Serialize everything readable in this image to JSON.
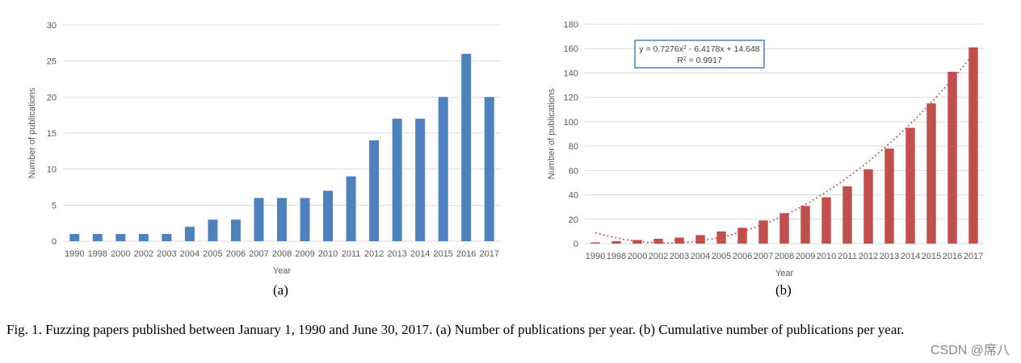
{
  "chart_data": [
    {
      "id": "a",
      "type": "bar",
      "categories": [
        "1990",
        "1998",
        "2000",
        "2002",
        "2003",
        "2004",
        "2005",
        "2006",
        "2007",
        "2008",
        "2009",
        "2010",
        "2011",
        "2012",
        "2013",
        "2014",
        "2015",
        "2016",
        "2017"
      ],
      "values": [
        1,
        1,
        1,
        1,
        1,
        2,
        3,
        3,
        6,
        6,
        6,
        7,
        9,
        14,
        17,
        17,
        20,
        26,
        20
      ],
      "xlabel": "Year",
      "ylabel": "Number of publications",
      "ylim": [
        0,
        30
      ],
      "yticks": [
        0,
        5,
        10,
        15,
        20,
        25,
        30
      ],
      "grid": true,
      "color": "#4f81bd"
    },
    {
      "id": "b",
      "type": "bar",
      "categories": [
        "1990",
        "1998",
        "2000",
        "2002",
        "2003",
        "2004",
        "2005",
        "2006",
        "2007",
        "2008",
        "2009",
        "2010",
        "2011",
        "2012",
        "2013",
        "2014",
        "2015",
        "2016",
        "2017"
      ],
      "values": [
        1,
        2,
        3,
        4,
        5,
        7,
        10,
        13,
        19,
        25,
        31,
        38,
        47,
        61,
        78,
        95,
        115,
        141,
        161
      ],
      "xlabel": "Year",
      "ylabel": "Number of publications",
      "ylim": [
        0,
        180
      ],
      "yticks": [
        0,
        20,
        40,
        60,
        80,
        100,
        120,
        140,
        160,
        180
      ],
      "grid": true,
      "color": "#c0504d",
      "trendline": {
        "type": "polynomial",
        "coefficients": [
          0.7276,
          -6.4178,
          14.648
        ],
        "equation_prefix": "y = 0.7276x",
        "equation_suffix": " - 6.4178x + 14.648",
        "r2_prefix": "R",
        "r2_suffix": " = 0.9917",
        "superscript": "2",
        "color": "#c0504d"
      }
    }
  ],
  "labels": {
    "a": "(a)",
    "b": "(b)"
  },
  "caption": "Fig. 1.    Fuzzing papers published between January 1, 1990 and June 30, 2017. (a) Number of publications per year. (b) Cumulative number of publications per year.",
  "watermark": "CSDN @席八"
}
